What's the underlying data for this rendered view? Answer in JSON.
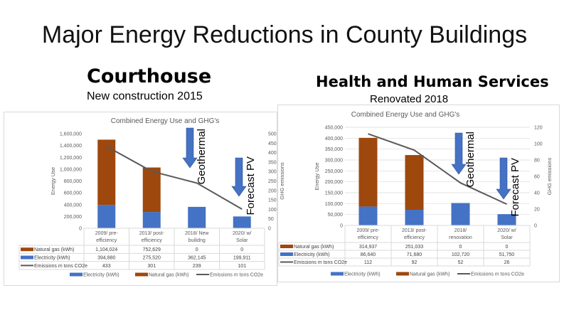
{
  "slide": {
    "title": "Major Energy Reductions in County Buildings",
    "courthouse": {
      "heading": "Courthouse",
      "subheading": "New construction 2015"
    },
    "hhs": {
      "heading": "Health and Human Services",
      "subheading": "Renovated 2018"
    }
  },
  "colors": {
    "electricity": "#4472C4",
    "natural_gas": "#9E480E",
    "emissions": "#595959",
    "arrow": "#4472C4"
  },
  "chart_data": [
    {
      "type": "bar",
      "stacked": true,
      "title": "Combined Energy Use and GHG's",
      "ylabel": "Energy Use",
      "y2label": "GHG emissions",
      "ylim": [
        0,
        1600000
      ],
      "ytick_step": 200000,
      "y2lim": [
        0,
        500
      ],
      "y2tick_step": 50,
      "categories": [
        [
          "2009/ pre-",
          "efficiency"
        ],
        [
          "2013/ post-",
          "efficiency"
        ],
        [
          "2018/ New",
          "builidng"
        ],
        [
          "2020/ w/",
          "Solar"
        ]
      ],
      "series": [
        {
          "name": "Natural gas (kWh)",
          "kind": "bar",
          "values": [
            1104024,
            752629,
            0,
            0
          ],
          "display": [
            "1,104,024",
            "752,629",
            "0",
            "0"
          ]
        },
        {
          "name": "Electricity (kWh)",
          "kind": "bar",
          "values": [
            394880,
            275520,
            362145,
            199911
          ],
          "display": [
            "394,880",
            "275,520",
            "362,145",
            "199,911"
          ]
        },
        {
          "name": "Emissions m tons CO2e",
          "kind": "line",
          "axis": "secondary",
          "values": [
            433,
            301,
            239,
            101
          ],
          "display": [
            "433",
            "301",
            "239",
            "101"
          ]
        }
      ],
      "legend": {
        "placement": "bottom",
        "entries": [
          "Electricity (kWh)",
          "Natural gas (kWh)",
          "Emissions m tons CO2e"
        ]
      },
      "annotations": [
        {
          "text": "Geothermal",
          "category": 2
        },
        {
          "text": "Forecast PV",
          "category": 3
        }
      ],
      "grid": false
    },
    {
      "type": "bar",
      "stacked": true,
      "title": "Combined Energy Use and GHG's",
      "ylabel": "Energy Use",
      "y2label": "GHG emissions",
      "ylim": [
        0,
        450000
      ],
      "ytick_step": 50000,
      "y2lim": [
        0,
        120
      ],
      "y2tick_step": 20,
      "categories": [
        [
          "2009/ pre-",
          "efficiency"
        ],
        [
          "2013/ post-",
          "efficiency"
        ],
        [
          "2018/",
          "renovation"
        ],
        [
          "2020/ w/",
          "Solar"
        ]
      ],
      "series": [
        {
          "name": "Natural gas (kWh)",
          "kind": "bar",
          "values": [
            314937,
            251033,
            0,
            0
          ],
          "display": [
            "314,937",
            "251,033",
            "0",
            "0"
          ]
        },
        {
          "name": "Electricity (kWh)",
          "kind": "bar",
          "values": [
            86640,
            71680,
            102720,
            51750
          ],
          "display": [
            "86,640",
            "71,680",
            "102,720",
            "51,750"
          ]
        },
        {
          "name": "Emissions m tons CO2e",
          "kind": "line",
          "axis": "secondary",
          "values": [
            112,
            92,
            52,
            26
          ],
          "display": [
            "112",
            "92",
            "52",
            "26"
          ]
        }
      ],
      "legend": {
        "placement": "bottom",
        "entries": [
          "Electricity (kWh)",
          "Natural gas (kWh)",
          "Emissions m tons CO2e"
        ]
      },
      "annotations": [
        {
          "text": "Geothermal",
          "category": 2
        },
        {
          "text": "Forecast PV",
          "category": 3
        }
      ],
      "grid": true
    }
  ]
}
